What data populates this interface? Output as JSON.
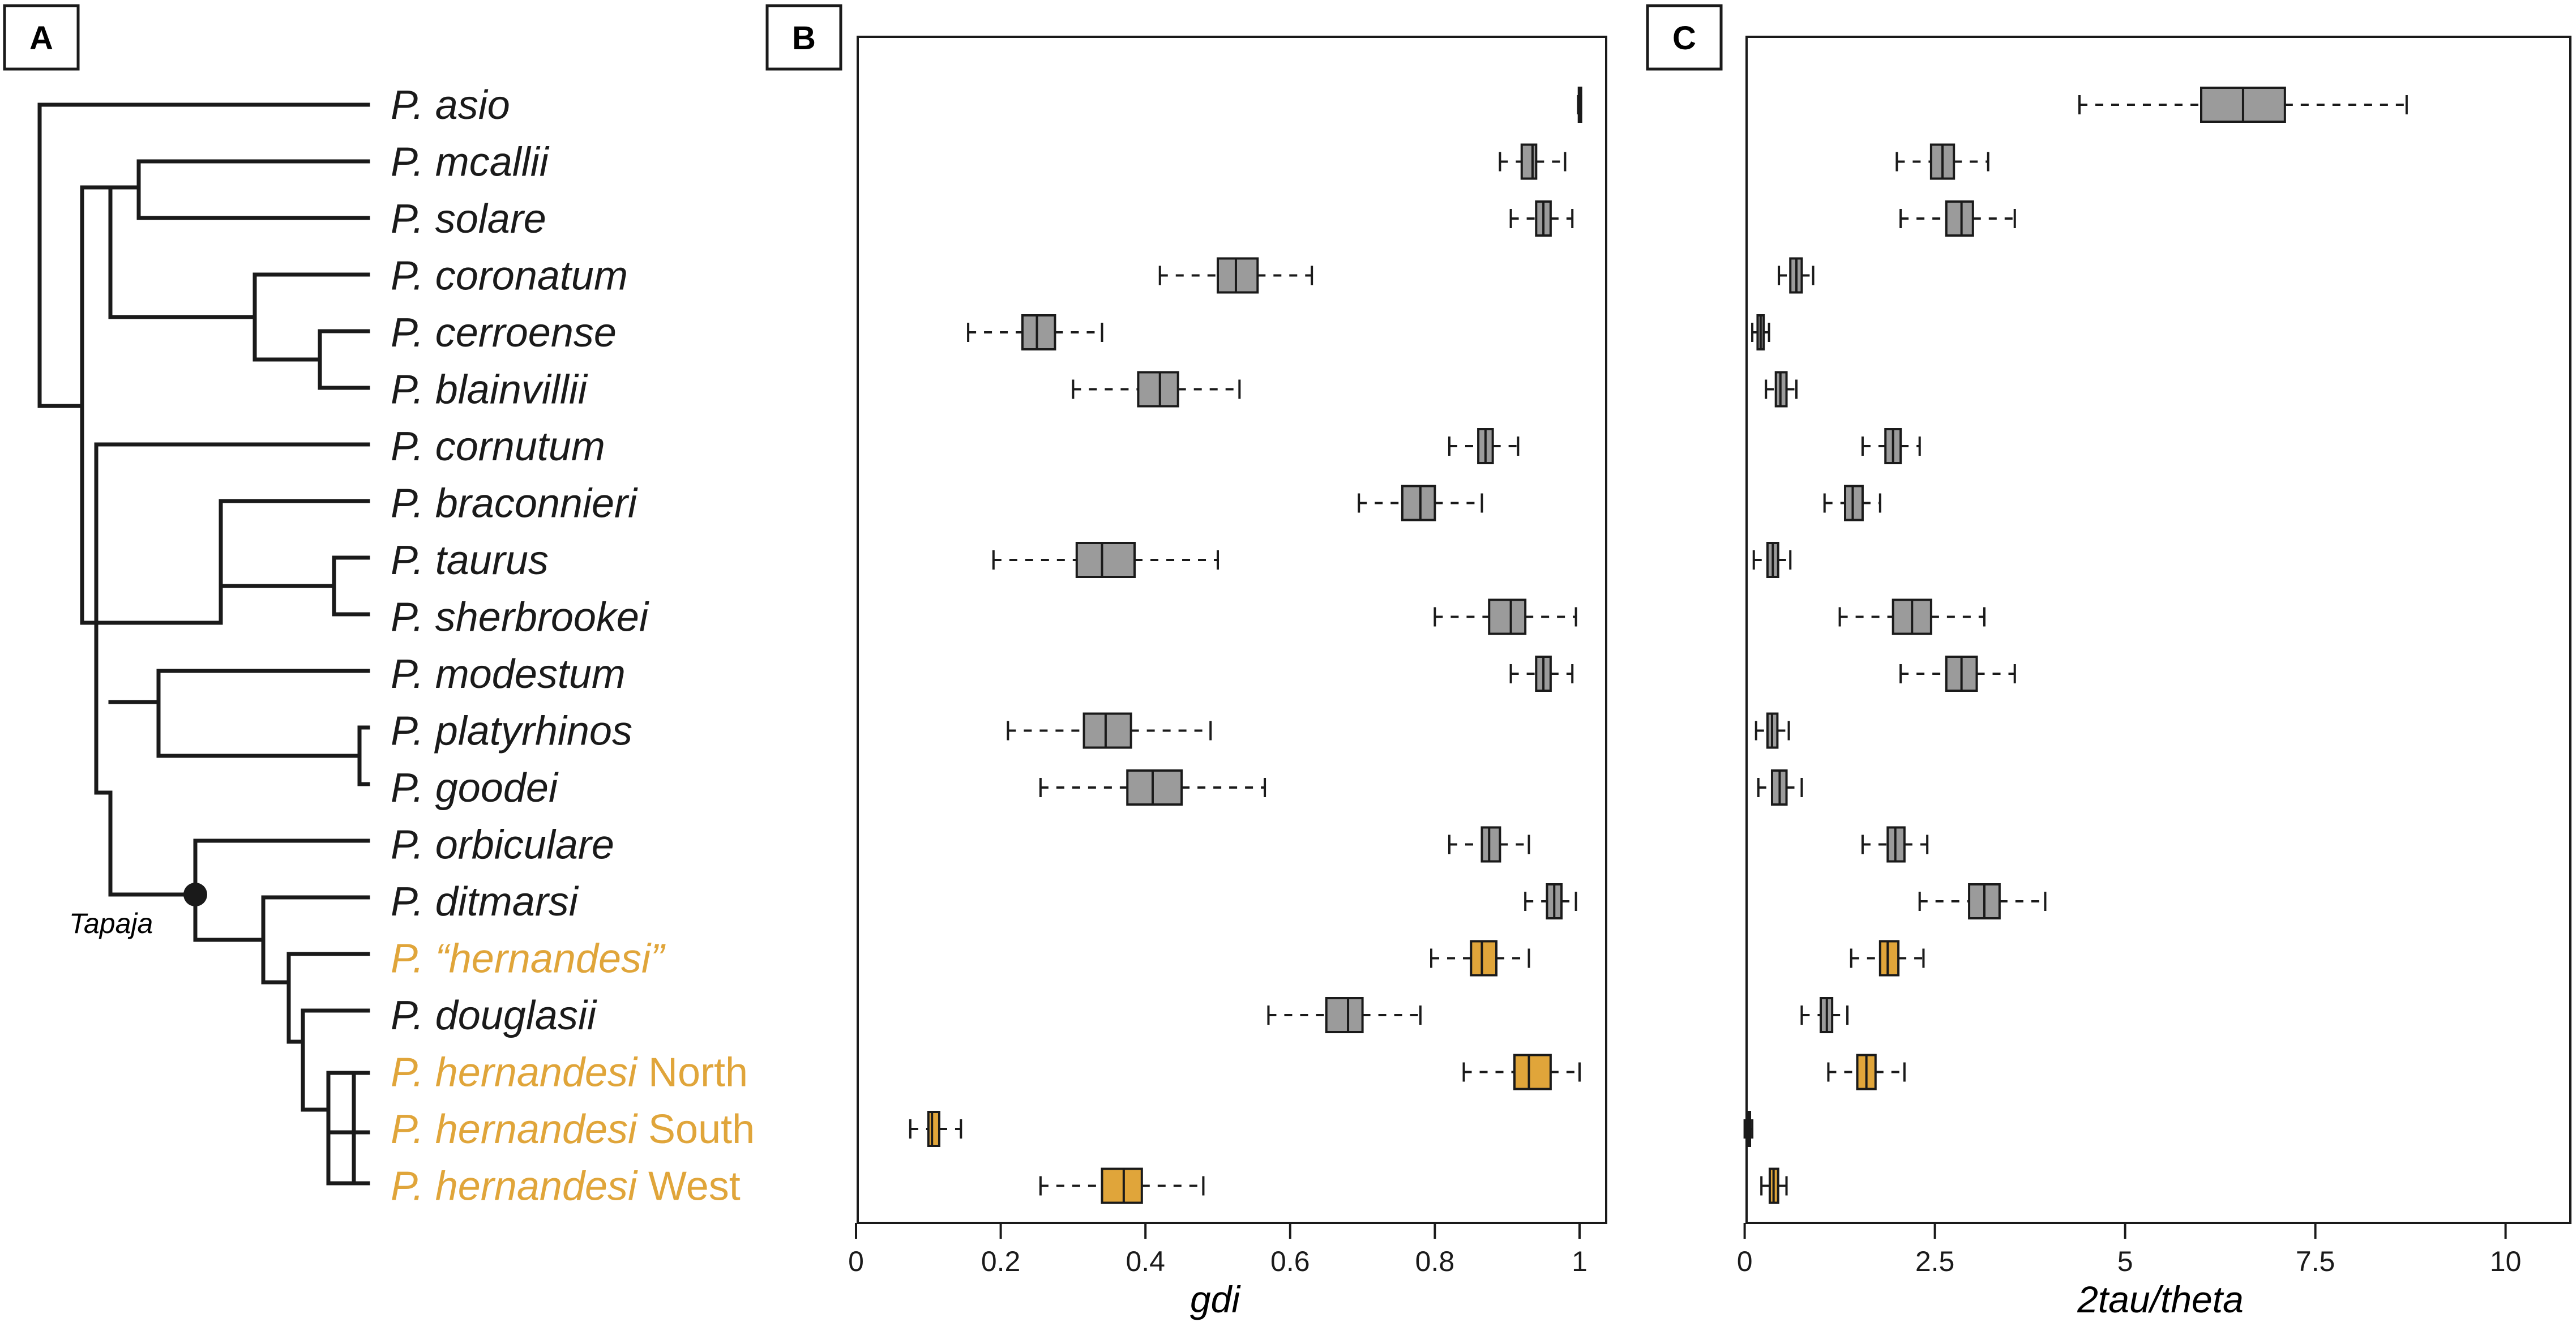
{
  "panels": {
    "a": "A",
    "b": "B",
    "c": "C"
  },
  "colors": {
    "grey_box": "#9b9b9b",
    "highlight": "#e0a53a",
    "ink": "#1a1a1a"
  },
  "tree": {
    "node_label": "Tapaja",
    "taxa": [
      {
        "genus": "P.",
        "epithet": "asio",
        "qualifier": "",
        "highlight": false
      },
      {
        "genus": "P.",
        "epithet": "mcallii",
        "qualifier": "",
        "highlight": false
      },
      {
        "genus": "P.",
        "epithet": "solare",
        "qualifier": "",
        "highlight": false
      },
      {
        "genus": "P.",
        "epithet": "coronatum",
        "qualifier": "",
        "highlight": false
      },
      {
        "genus": "P.",
        "epithet": "cerroense",
        "qualifier": "",
        "highlight": false
      },
      {
        "genus": "P.",
        "epithet": "blainvillii",
        "qualifier": "",
        "highlight": false
      },
      {
        "genus": "P.",
        "epithet": "cornutum",
        "qualifier": "",
        "highlight": false
      },
      {
        "genus": "P.",
        "epithet": "braconnieri",
        "qualifier": "",
        "highlight": false
      },
      {
        "genus": "P.",
        "epithet": "taurus",
        "qualifier": "",
        "highlight": false
      },
      {
        "genus": "P.",
        "epithet": "sherbrookei",
        "qualifier": "",
        "highlight": false
      },
      {
        "genus": "P.",
        "epithet": "modestum",
        "qualifier": "",
        "highlight": false
      },
      {
        "genus": "P.",
        "epithet": "platyrhinos",
        "qualifier": "",
        "highlight": false
      },
      {
        "genus": "P.",
        "epithet": "goodei",
        "qualifier": "",
        "highlight": false
      },
      {
        "genus": "P.",
        "epithet": "orbiculare",
        "qualifier": "",
        "highlight": false
      },
      {
        "genus": "P.",
        "epithet": "ditmarsi",
        "qualifier": "",
        "highlight": false
      },
      {
        "genus": "P.",
        "epithet": "“hernandesi”",
        "qualifier": "",
        "highlight": true
      },
      {
        "genus": "P.",
        "epithet": "douglasii",
        "qualifier": "",
        "highlight": false
      },
      {
        "genus": "P.",
        "epithet": "hernandesi",
        "qualifier": "North",
        "highlight": true
      },
      {
        "genus": "P.",
        "epithet": "hernandesi",
        "qualifier": "South",
        "highlight": true
      },
      {
        "genus": "P.",
        "epithet": "hernandesi",
        "qualifier": "West",
        "highlight": true
      }
    ]
  },
  "chart_data": [
    {
      "type": "box",
      "panel": "B",
      "orientation": "horizontal",
      "xlabel": "gdi",
      "xlim": [
        0,
        1
      ],
      "xticks": [
        0,
        0.2,
        0.4,
        0.6,
        0.8,
        1
      ],
      "xtick_labels": [
        "0",
        "0.2",
        "0.4",
        "0.6",
        "0.8",
        "1"
      ],
      "categories": [
        "P. asio",
        "P. mcallii",
        "P. solare",
        "P. coronatum",
        "P. cerroense",
        "P. blainvillii",
        "P. cornutum",
        "P. braconnieri",
        "P. taurus",
        "P. sherbrookei",
        "P. modestum",
        "P. platyrhinos",
        "P. goodei",
        "P. orbiculare",
        "P. ditmarsi",
        "P. “hernandesi”",
        "P. douglasii",
        "P. hernandesi North",
        "P. hernandesi South",
        "P. hernandesi West"
      ],
      "boxes": [
        {
          "min": 0.998,
          "q1": 0.999,
          "median": 1.0,
          "q3": 1.001,
          "max": 1.002
        },
        {
          "min": 0.89,
          "q1": 0.92,
          "median": 0.935,
          "q3": 0.94,
          "max": 0.98
        },
        {
          "min": 0.905,
          "q1": 0.94,
          "median": 0.95,
          "q3": 0.96,
          "max": 0.99
        },
        {
          "min": 0.42,
          "q1": 0.5,
          "median": 0.525,
          "q3": 0.555,
          "max": 0.63
        },
        {
          "min": 0.155,
          "q1": 0.23,
          "median": 0.25,
          "q3": 0.275,
          "max": 0.34
        },
        {
          "min": 0.3,
          "q1": 0.39,
          "median": 0.42,
          "q3": 0.445,
          "max": 0.53
        },
        {
          "min": 0.82,
          "q1": 0.86,
          "median": 0.87,
          "q3": 0.88,
          "max": 0.915
        },
        {
          "min": 0.695,
          "q1": 0.755,
          "median": 0.78,
          "q3": 0.8,
          "max": 0.865
        },
        {
          "min": 0.19,
          "q1": 0.305,
          "median": 0.34,
          "q3": 0.385,
          "max": 0.5
        },
        {
          "min": 0.8,
          "q1": 0.875,
          "median": 0.905,
          "q3": 0.925,
          "max": 0.995
        },
        {
          "min": 0.905,
          "q1": 0.94,
          "median": 0.95,
          "q3": 0.96,
          "max": 0.99
        },
        {
          "min": 0.21,
          "q1": 0.315,
          "median": 0.345,
          "q3": 0.38,
          "max": 0.49
        },
        {
          "min": 0.255,
          "q1": 0.375,
          "median": 0.41,
          "q3": 0.45,
          "max": 0.565
        },
        {
          "min": 0.82,
          "q1": 0.865,
          "median": 0.875,
          "q3": 0.89,
          "max": 0.93
        },
        {
          "min": 0.925,
          "q1": 0.955,
          "median": 0.965,
          "q3": 0.975,
          "max": 0.995
        },
        {
          "min": 0.795,
          "q1": 0.85,
          "median": 0.865,
          "q3": 0.885,
          "max": 0.93
        },
        {
          "min": 0.57,
          "q1": 0.65,
          "median": 0.68,
          "q3": 0.7,
          "max": 0.78
        },
        {
          "min": 0.84,
          "q1": 0.91,
          "median": 0.93,
          "q3": 0.96,
          "max": 1.0
        },
        {
          "min": 0.075,
          "q1": 0.1,
          "median": 0.105,
          "q3": 0.115,
          "max": 0.145
        },
        {
          "min": 0.255,
          "q1": 0.34,
          "median": 0.37,
          "q3": 0.395,
          "max": 0.48
        }
      ]
    },
    {
      "type": "box",
      "panel": "C",
      "orientation": "horizontal",
      "xlabel": "2tau/theta",
      "xlim": [
        -0.25,
        11
      ],
      "xticks": [
        0,
        2.5,
        5,
        7.5,
        10
      ],
      "xtick_labels": [
        "0",
        "2.5",
        "5",
        "7.5",
        "10"
      ],
      "categories": [
        "P. asio",
        "P. mcallii",
        "P. solare",
        "P. coronatum",
        "P. cerroense",
        "P. blainvillii",
        "P. cornutum",
        "P. braconnieri",
        "P. taurus",
        "P. sherbrookei",
        "P. modestum",
        "P. platyrhinos",
        "P. goodei",
        "P. orbiculare",
        "P. ditmarsi",
        "P. “hernandesi”",
        "P. douglasii",
        "P. hernandesi North",
        "P. hernandesi South",
        "P. hernandesi West"
      ],
      "boxes": [
        {
          "min": 4.4,
          "q1": 6.0,
          "median": 6.55,
          "q3": 7.1,
          "max": 8.7
        },
        {
          "min": 2.0,
          "q1": 2.45,
          "median": 2.6,
          "q3": 2.75,
          "max": 3.2
        },
        {
          "min": 2.05,
          "q1": 2.65,
          "median": 2.85,
          "q3": 3.0,
          "max": 3.55
        },
        {
          "min": 0.45,
          "q1": 0.6,
          "median": 0.68,
          "q3": 0.75,
          "max": 0.9
        },
        {
          "min": 0.1,
          "q1": 0.17,
          "median": 0.21,
          "q3": 0.25,
          "max": 0.32
        },
        {
          "min": 0.28,
          "q1": 0.41,
          "median": 0.47,
          "q3": 0.55,
          "max": 0.68
        },
        {
          "min": 1.55,
          "q1": 1.85,
          "median": 1.95,
          "q3": 2.05,
          "max": 2.3
        },
        {
          "min": 1.05,
          "q1": 1.32,
          "median": 1.42,
          "q3": 1.55,
          "max": 1.78
        },
        {
          "min": 0.12,
          "q1": 0.3,
          "median": 0.37,
          "q3": 0.44,
          "max": 0.6
        },
        {
          "min": 1.25,
          "q1": 1.95,
          "median": 2.2,
          "q3": 2.45,
          "max": 3.15
        },
        {
          "min": 2.05,
          "q1": 2.65,
          "median": 2.85,
          "q3": 3.05,
          "max": 3.55
        },
        {
          "min": 0.15,
          "q1": 0.3,
          "median": 0.36,
          "q3": 0.43,
          "max": 0.58
        },
        {
          "min": 0.18,
          "q1": 0.36,
          "median": 0.46,
          "q3": 0.55,
          "max": 0.75
        },
        {
          "min": 1.55,
          "q1": 1.88,
          "median": 1.98,
          "q3": 2.1,
          "max": 2.4
        },
        {
          "min": 2.3,
          "q1": 2.95,
          "median": 3.15,
          "q3": 3.35,
          "max": 3.95
        },
        {
          "min": 1.4,
          "q1": 1.78,
          "median": 1.88,
          "q3": 2.02,
          "max": 2.35
        },
        {
          "min": 0.75,
          "q1": 1.0,
          "median": 1.08,
          "q3": 1.15,
          "max": 1.35
        },
        {
          "min": 1.1,
          "q1": 1.48,
          "median": 1.6,
          "q3": 1.72,
          "max": 2.1
        },
        {
          "min": 0.0,
          "q1": 0.03,
          "median": 0.05,
          "q3": 0.07,
          "max": 0.1
        },
        {
          "min": 0.22,
          "q1": 0.33,
          "median": 0.38,
          "q3": 0.44,
          "max": 0.55
        }
      ]
    }
  ]
}
